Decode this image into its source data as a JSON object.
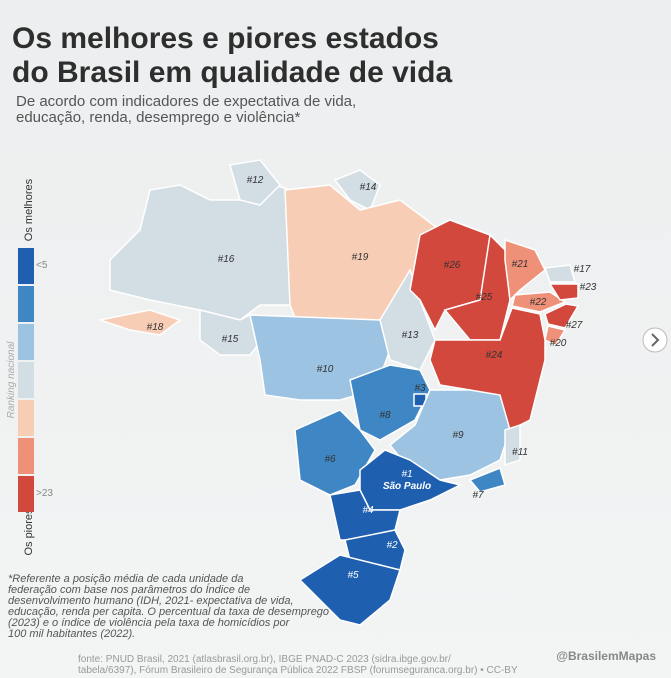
{
  "header": {
    "title_lines": [
      "Os melhores e piores estados",
      "do Brasil em qualidade de vida"
    ],
    "subtitle_lines": [
      "De acordo com indicadores de expectativa de vida,",
      "educação, renda, desemprego e violência*"
    ]
  },
  "legend": {
    "top": "Os melhores",
    "low": "<5",
    "axis": "Ranking nacional",
    "high": ">23",
    "bottom": "Os piores",
    "colors": [
      "#1f5fb0",
      "#3f86c4",
      "#9cc3e2",
      "#d3dde4",
      "#f8cdb5",
      "#ef9078",
      "#d3483d"
    ]
  },
  "states": [
    {
      "label": "#16",
      "color": "#d3dde4"
    },
    {
      "label": "#12",
      "color": "#d3dde4"
    },
    {
      "label": "#14",
      "color": "#d3dde4"
    },
    {
      "label": "#19",
      "color": "#f8cdb5"
    },
    {
      "label": "#18",
      "color": "#f8cdb5"
    },
    {
      "label": "#15",
      "color": "#d3dde4"
    },
    {
      "label": "#10",
      "color": "#9cc3e2"
    },
    {
      "label": "#13",
      "color": "#d3dde4"
    },
    {
      "label": "#26",
      "color": "#d3483d"
    },
    {
      "label": "#25",
      "color": "#d3483d"
    },
    {
      "label": "#21",
      "color": "#ef9078"
    },
    {
      "label": "#17",
      "color": "#d3dde4"
    },
    {
      "label": "#22",
      "color": "#ef9078"
    },
    {
      "label": "#23",
      "color": "#d3483d"
    },
    {
      "label": "#27",
      "color": "#d3483d"
    },
    {
      "label": "#20",
      "color": "#ef9078"
    },
    {
      "label": "#24",
      "color": "#d3483d"
    },
    {
      "label": "#8",
      "color": "#3f86c4"
    },
    {
      "label": "#3",
      "color": "#1f5fb0"
    },
    {
      "label": "#9",
      "color": "#9cc3e2"
    },
    {
      "label": "#11",
      "color": "#d3dde4"
    },
    {
      "label": "#7",
      "color": "#3f86c4"
    },
    {
      "label": "#6",
      "color": "#3f86c4"
    },
    {
      "label": "#1",
      "color": "#1f5fb0"
    },
    {
      "label": "#4",
      "color": "#1f5fb0"
    },
    {
      "label": "#2",
      "color": "#1f5fb0"
    },
    {
      "label": "#5",
      "color": "#1f5fb0"
    }
  ],
  "city": "São Paulo",
  "footnote_lines": [
    "*Referente a posição média de cada unidade da",
    " federação com base nos parâmetros do Índice de",
    "desenvolvimento humano (IDH, 2021- expectativa de vida,",
    "educação, renda per capita. O percentual da taxa de desemprego",
    "(2023) e o índice de violência pela taxa de homicídios por",
    "100 mil habitantes (2022)."
  ],
  "source_lines": [
    "fonte: PNUD Brasil, 2021 (atlasbrasil.org.br), IBGE PNAD-C 2023 (sidra.ibge.gov.br/",
    "tabela/6397), Fórum Brasileiro de Segurança Pública 2022 FBSP (forumseguranca.org.br) • CC-BY"
  ],
  "credit": "@BrasilemMapas"
}
